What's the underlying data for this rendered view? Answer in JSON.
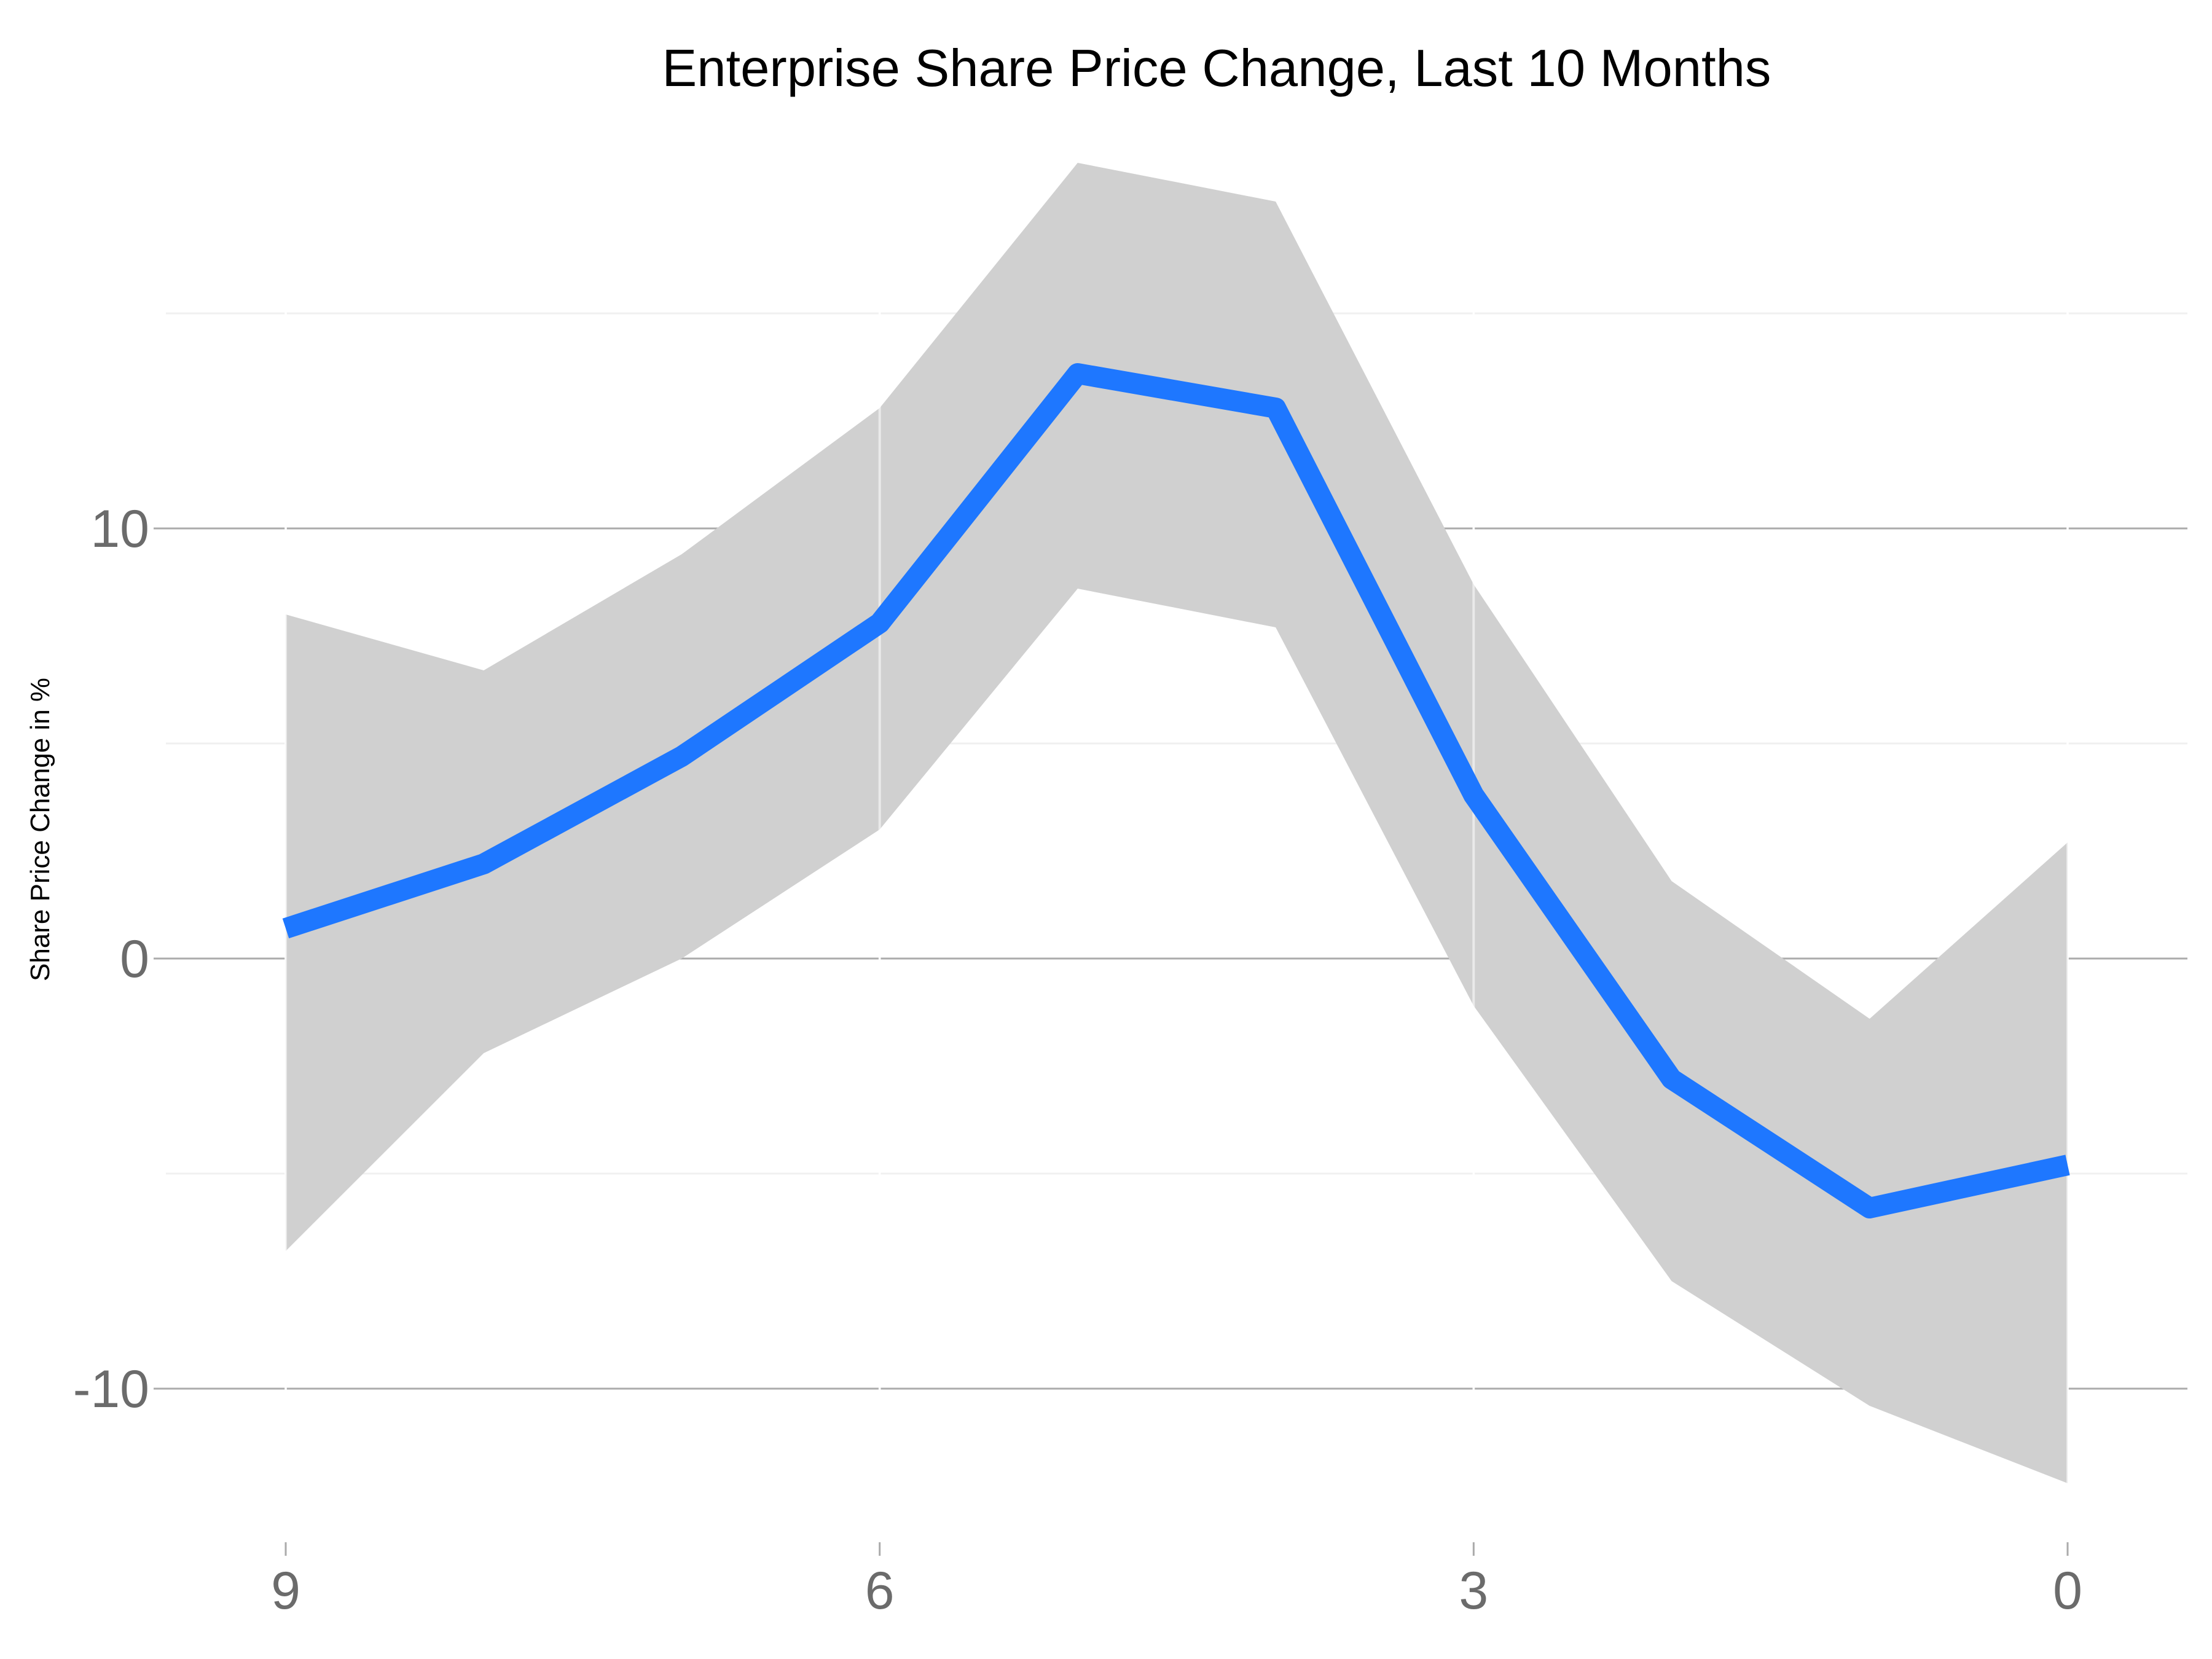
{
  "chart_data": {
    "type": "area",
    "title": "Enterprise Share Price Change, Last 10 Months",
    "xlabel": "",
    "ylabel": "Share Price Change in %",
    "x": [
      9,
      8,
      7,
      6,
      5,
      4,
      3,
      2,
      1,
      0
    ],
    "x_reversed": true,
    "xticks": [
      9,
      6,
      3,
      0
    ],
    "yticks": [
      -10,
      0,
      10
    ],
    "xlim": [
      9.6,
      -0.6
    ],
    "ylim": [
      -13,
      18.5
    ],
    "grid": true,
    "legend": "none",
    "series": [
      {
        "values": [
          0.7,
          2.2,
          4.7,
          7.8,
          13.6,
          12.8,
          3.8,
          -2.8,
          -5.8,
          -4.8
        ]
      }
    ],
    "band": {
      "upper": [
        8.0,
        6.7,
        9.4,
        12.8,
        18.5,
        17.6,
        8.7,
        1.8,
        -1.4,
        2.7
      ],
      "lower": [
        -6.8,
        -2.2,
        0.0,
        3.0,
        8.6,
        7.7,
        -1.1,
        -7.5,
        -10.4,
        -12.2
      ]
    },
    "colors": {
      "line": "#1E77FF",
      "band": "#D0D0D0",
      "grid_major": "#ABABAB",
      "grid_minor": "#F0F0F0",
      "tick_text": "#6B6B6B"
    }
  }
}
